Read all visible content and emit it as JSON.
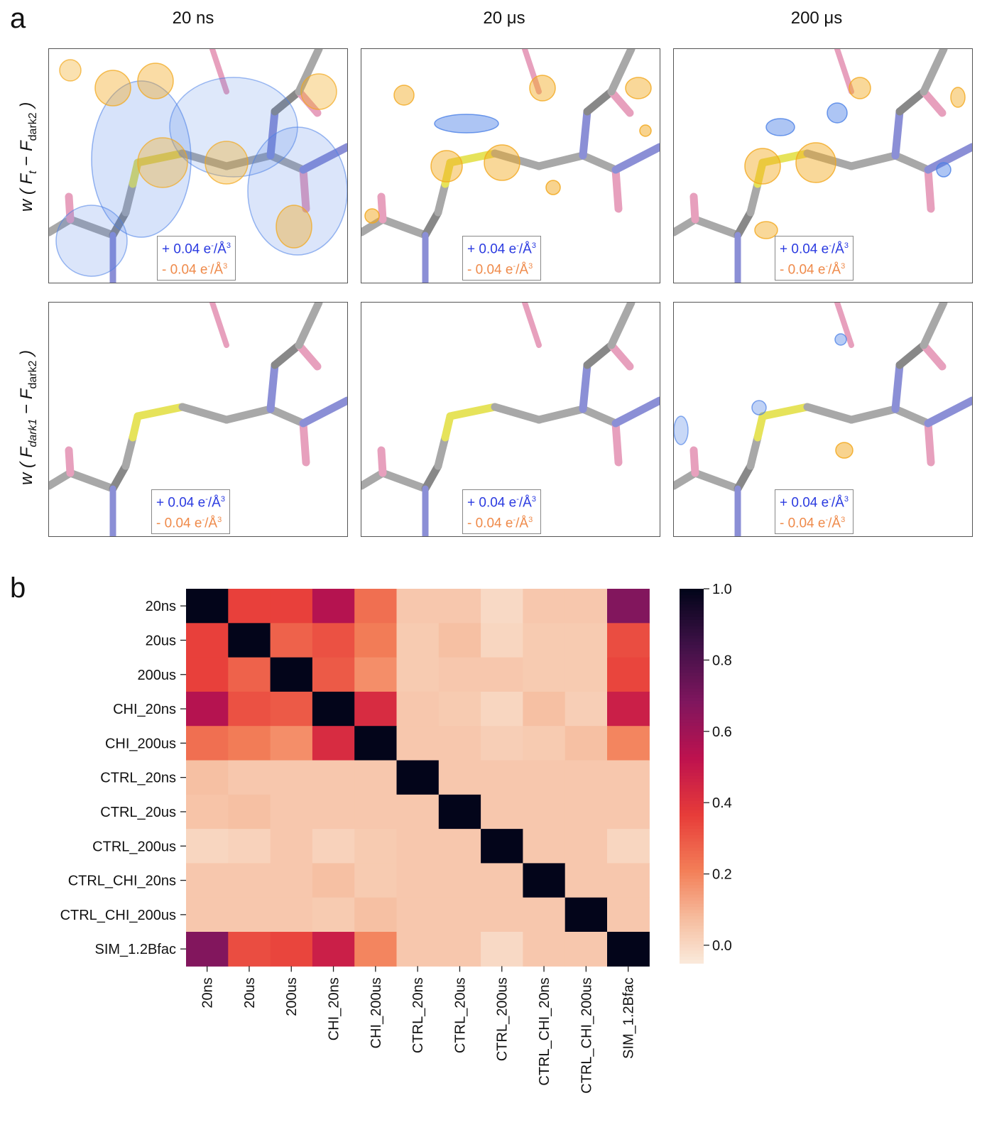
{
  "panel_a": {
    "letter": "a",
    "columns": [
      "20 ns",
      "20 μs",
      "200 μs"
    ],
    "row_labels": [
      {
        "w": "w",
        "open": "(",
        "F1": "F",
        "F1_sub": "t",
        "minus": "−",
        "F2": "F",
        "F2_sub": "dark2",
        "close": ")"
      },
      {
        "w": "w",
        "open": "(",
        "F1": "F",
        "F1_sub": "dark1",
        "minus": "−",
        "F2": "F",
        "F2_sub": "dark2",
        "close": ")"
      }
    ],
    "legend": {
      "pos_text": "+ 0.04 e",
      "neg_text": "- 0.04 e",
      "sup_minus": "-",
      "unit": "/Å",
      "sup_3": "3"
    },
    "colors": {
      "positive_density": "#4a7fe6",
      "negative_density": "#f2a81d",
      "sulfur_bond": "#e6e35a",
      "carbon": "#a8a8a8",
      "nitrogen": "#8b8fd6",
      "oxygen": "#e7a0bd"
    }
  },
  "panel_b": {
    "letter": "b"
  },
  "chart_data": {
    "type": "heatmap",
    "rows": [
      "20ns",
      "20us",
      "200us",
      "CHI_20ns",
      "CHI_200us",
      "CTRL_20ns",
      "CTRL_20us",
      "CTRL_200us",
      "CTRL_CHI_20ns",
      "CTRL_CHI_200us",
      "SIM_1.2Bfac"
    ],
    "columns": [
      "20ns",
      "20us",
      "200us",
      "CHI_20ns",
      "CHI_200us",
      "CTRL_20ns",
      "CTRL_20us",
      "CTRL_200us",
      "CTRL_CHI_20ns",
      "CTRL_CHI_200us",
      "SIM_1.2Bfac"
    ],
    "values": [
      [
        1.0,
        0.36,
        0.36,
        0.55,
        0.25,
        0.05,
        0.05,
        0.0,
        0.05,
        0.05,
        0.68
      ],
      [
        0.36,
        1.0,
        0.28,
        0.32,
        0.22,
        0.04,
        0.07,
        0.01,
        0.04,
        0.04,
        0.33
      ],
      [
        0.36,
        0.28,
        1.0,
        0.3,
        0.18,
        0.04,
        0.05,
        0.05,
        0.04,
        0.04,
        0.35
      ],
      [
        0.55,
        0.32,
        0.3,
        1.0,
        0.43,
        0.05,
        0.04,
        0.01,
        0.07,
        0.03,
        0.48
      ],
      [
        0.25,
        0.22,
        0.18,
        0.43,
        1.0,
        0.05,
        0.05,
        0.03,
        0.04,
        0.07,
        0.2
      ],
      [
        0.07,
        0.05,
        0.05,
        0.05,
        0.05,
        1.0,
        0.05,
        0.05,
        0.05,
        0.05,
        0.05
      ],
      [
        0.06,
        0.07,
        0.05,
        0.05,
        0.05,
        0.05,
        1.0,
        0.05,
        0.05,
        0.05,
        0.05
      ],
      [
        0.01,
        0.02,
        0.05,
        0.02,
        0.04,
        0.05,
        0.05,
        1.0,
        0.05,
        0.05,
        0.01
      ],
      [
        0.05,
        0.05,
        0.05,
        0.07,
        0.04,
        0.05,
        0.05,
        0.05,
        1.0,
        0.05,
        0.05
      ],
      [
        0.05,
        0.05,
        0.05,
        0.04,
        0.07,
        0.05,
        0.05,
        0.05,
        0.05,
        1.0,
        0.05
      ],
      [
        0.68,
        0.33,
        0.35,
        0.48,
        0.2,
        0.05,
        0.05,
        0.0,
        0.05,
        0.05,
        1.0
      ]
    ],
    "colorbar": {
      "min": -0.05,
      "max": 1.0,
      "ticks": [
        0.0,
        0.2,
        0.4,
        0.6,
        0.8,
        1.0
      ],
      "tick_labels": [
        "0.0",
        "0.2",
        "0.4",
        "0.6",
        "0.8",
        "1.0"
      ],
      "colormap": "rocket_r"
    }
  }
}
